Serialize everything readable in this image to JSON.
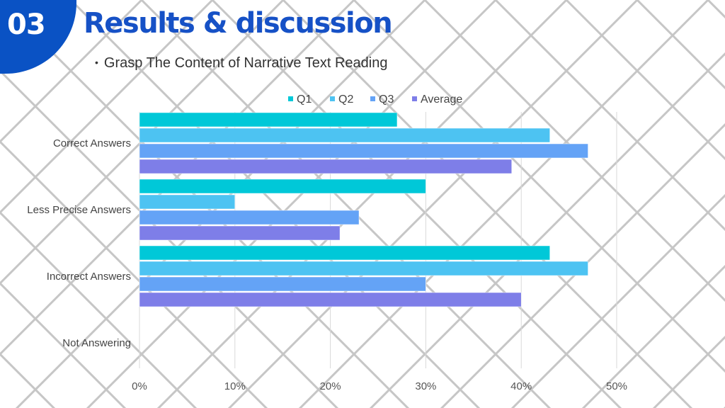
{
  "slide": {
    "number": "03",
    "title": "Results & discussion",
    "bullet": "Grasp The Content of Narrative Text Reading"
  },
  "colors": {
    "badge": "#0a52c4",
    "title": "#1651c6",
    "pattern": "#c6c6c6"
  },
  "chart_data": {
    "type": "bar",
    "orientation": "horizontal",
    "categories": [
      "Correct Answers",
      "Less Precise Answers",
      "Incorrect Answers",
      "Not Answering"
    ],
    "series": [
      {
        "name": "Q1",
        "color": "#00c8d8",
        "values": [
          27,
          30,
          43,
          0
        ]
      },
      {
        "name": "Q2",
        "color": "#4dc3f2",
        "values": [
          43,
          10,
          47,
          0
        ]
      },
      {
        "name": "Q3",
        "color": "#64a3f6",
        "values": [
          47,
          23,
          30,
          0
        ]
      },
      {
        "name": "Average",
        "color": "#7e7ee8",
        "values": [
          39,
          21,
          40,
          0
        ]
      }
    ],
    "xlim": [
      0,
      50
    ],
    "xticks": [
      "0%",
      "10%",
      "20%",
      "30%",
      "40%",
      "50%"
    ],
    "grid": true,
    "legend_position": "top"
  }
}
